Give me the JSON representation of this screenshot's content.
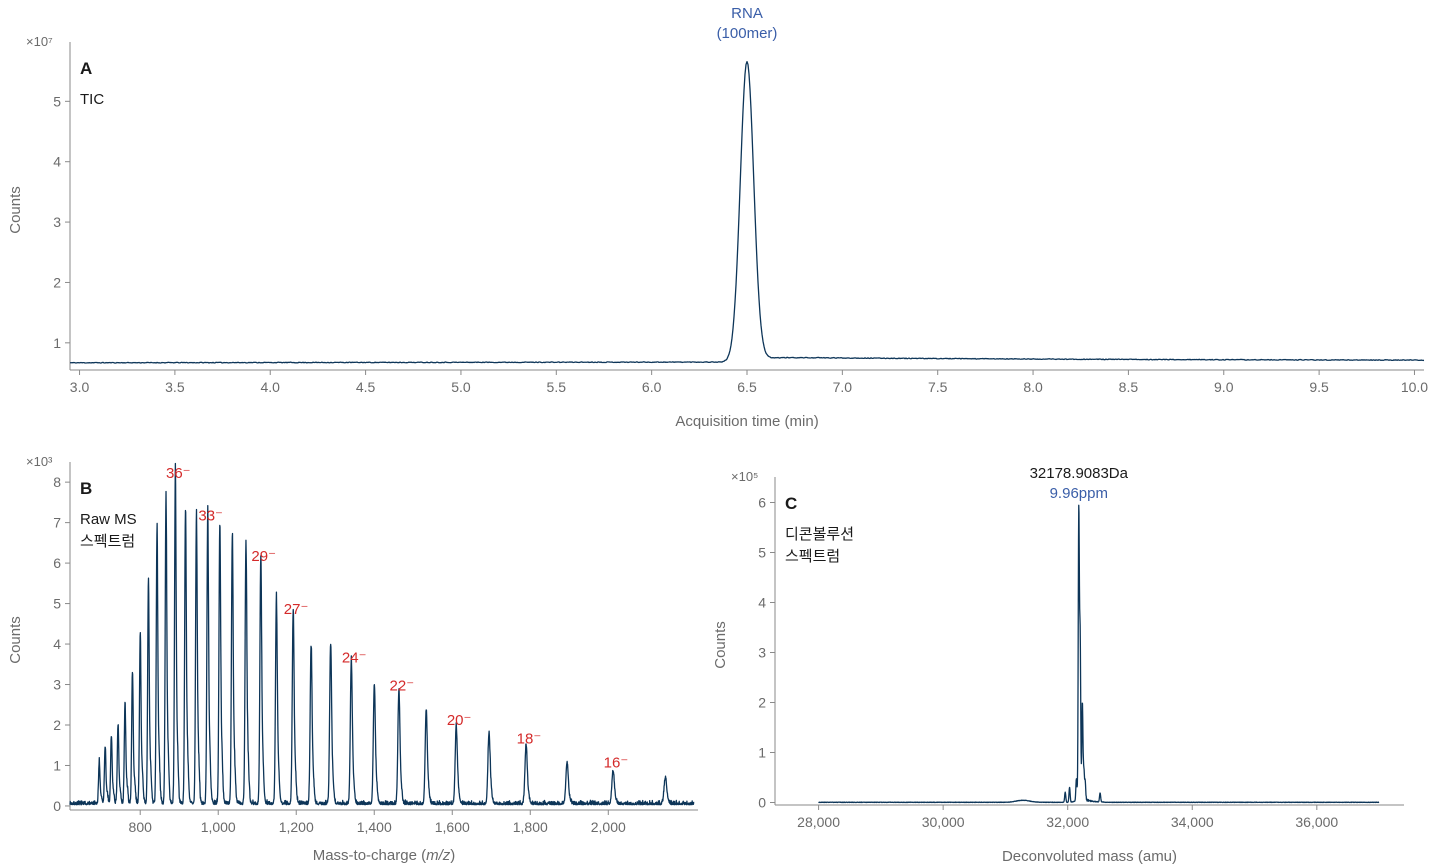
{
  "chart_data": [
    {
      "panel": "A",
      "type": "line",
      "labels": [
        "TIC"
      ],
      "xlabel": "Acquisition time (min)",
      "ylabel": "Counts",
      "y_exponent": "×10⁷",
      "xlim": [
        2.95,
        10.05
      ],
      "ylim": [
        0.55,
        5.85
      ],
      "xticks": [
        3.0,
        3.5,
        4.0,
        4.5,
        5.0,
        5.5,
        6.0,
        6.5,
        7.0,
        7.5,
        8.0,
        8.5,
        9.0,
        9.5,
        10.0
      ],
      "xtick_labels": [
        "3.0",
        "3.5",
        "4.0",
        "4.5",
        "5.0",
        "5.5",
        "6.0",
        "6.5",
        "7.0",
        "7.5",
        "8.0",
        "8.5",
        "9.0",
        "9.5",
        "10.0"
      ],
      "yticks": [
        1,
        2,
        3,
        4,
        5
      ],
      "ytick_labels": [
        "1",
        "2",
        "3",
        "4",
        "5"
      ],
      "baseline": 0.67,
      "peak": {
        "x": 6.5,
        "y": 5.65,
        "width": 0.035,
        "tail_level": 0.75
      },
      "annotations": [
        {
          "x": 6.5,
          "lines": [
            "RNA",
            "(100mer)"
          ],
          "color": "#3a5ea8"
        }
      ]
    },
    {
      "panel": "B",
      "type": "line",
      "labels": [
        "Raw MS",
        "스펙트럼"
      ],
      "xlabel_parts": [
        "Mass-to-charge (",
        "m/z",
        ")"
      ],
      "ylabel": "Counts",
      "y_exponent": "×10³",
      "xlim": [
        620,
        2230
      ],
      "ylim": [
        -0.1,
        8.3
      ],
      "xticks": [
        800,
        1000,
        1200,
        1400,
        1600,
        1800,
        2000
      ],
      "xtick_labels": [
        "800",
        "1,000",
        "1,200",
        "1,400",
        "1,600",
        "1,800",
        "2,000"
      ],
      "yticks": [
        0,
        1,
        2,
        3,
        4,
        5,
        6,
        7,
        8
      ],
      "ytick_labels": [
        "0",
        "1",
        "2",
        "3",
        "4",
        "5",
        "6",
        "7",
        "8"
      ],
      "peaks": [
        {
          "x": 2146,
          "y": 0.6
        },
        {
          "x": 2012,
          "y": 0.75
        },
        {
          "x": 1894,
          "y": 0.95
        },
        {
          "x": 1789,
          "y": 1.35
        },
        {
          "x": 1694,
          "y": 1.65
        },
        {
          "x": 1610,
          "y": 1.8
        },
        {
          "x": 1533,
          "y": 2.2
        },
        {
          "x": 1463,
          "y": 2.65
        },
        {
          "x": 1400,
          "y": 2.8
        },
        {
          "x": 1341,
          "y": 3.35
        },
        {
          "x": 1288,
          "y": 3.8
        },
        {
          "x": 1238,
          "y": 3.75
        },
        {
          "x": 1192,
          "y": 4.55
        },
        {
          "x": 1149,
          "y": 4.85
        },
        {
          "x": 1109,
          "y": 5.85
        },
        {
          "x": 1071,
          "y": 6.2
        },
        {
          "x": 1036,
          "y": 6.4
        },
        {
          "x": 1004,
          "y": 6.7
        },
        {
          "x": 973,
          "y": 6.85
        },
        {
          "x": 944,
          "y": 6.9
        },
        {
          "x": 916,
          "y": 7.1
        },
        {
          "x": 890,
          "y": 7.9
        },
        {
          "x": 866,
          "y": 7.35
        },
        {
          "x": 843,
          "y": 6.6
        },
        {
          "x": 821,
          "y": 5.3
        },
        {
          "x": 800,
          "y": 4.1
        },
        {
          "x": 780,
          "y": 3.2
        },
        {
          "x": 761,
          "y": 2.4
        },
        {
          "x": 743,
          "y": 1.9
        },
        {
          "x": 726,
          "y": 1.65
        },
        {
          "x": 710,
          "y": 1.4
        },
        {
          "x": 695,
          "y": 1.0
        }
      ],
      "charge_labels": [
        {
          "x": 890,
          "y": 7.9,
          "text": "36⁻"
        },
        {
          "x": 973,
          "y": 6.85,
          "text": "33⁻"
        },
        {
          "x": 1109,
          "y": 5.85,
          "text": "29⁻"
        },
        {
          "x": 1192,
          "y": 4.55,
          "text": "27⁻"
        },
        {
          "x": 1341,
          "y": 3.35,
          "text": "24⁻"
        },
        {
          "x": 1463,
          "y": 2.65,
          "text": "22⁻"
        },
        {
          "x": 1610,
          "y": 1.8,
          "text": "20⁻"
        },
        {
          "x": 1789,
          "y": 1.35,
          "text": "18⁻"
        },
        {
          "x": 2012,
          "y": 0.75,
          "text": "16⁻"
        }
      ]
    },
    {
      "panel": "C",
      "type": "line",
      "labels": [
        "디콘볼루션",
        "스펙트럼"
      ],
      "xlabel": "Deconvoluted mass (amu)",
      "ylabel": "Counts",
      "y_exponent": "×10⁵",
      "xlim": [
        27300,
        37400
      ],
      "ylim": [
        -0.05,
        6.35
      ],
      "xticks": [
        28000,
        30000,
        32000,
        34000,
        36000
      ],
      "xtick_labels": [
        "28,000",
        "30,000",
        "32,000",
        "34,000",
        "36,000"
      ],
      "yticks": [
        0,
        1,
        2,
        3,
        4,
        5,
        6
      ],
      "ytick_labels": [
        "0",
        "1",
        "2",
        "3",
        "4",
        "5",
        "6"
      ],
      "data_start": 28000,
      "data_end": 37000,
      "peaks": [
        {
          "x": 32178,
          "y": 5.78
        },
        {
          "x": 32200,
          "y": 3.2
        },
        {
          "x": 32235,
          "y": 1.95
        },
        {
          "x": 32258,
          "y": 0.6
        },
        {
          "x": 32280,
          "y": 0.35
        },
        {
          "x": 32140,
          "y": 0.45
        },
        {
          "x": 32030,
          "y": 0.3
        },
        {
          "x": 31960,
          "y": 0.2
        },
        {
          "x": 32520,
          "y": 0.18
        },
        {
          "x": 31280,
          "y": 0.04
        }
      ],
      "annotations": [
        {
          "x": 32178,
          "lines": [
            "32178.9083Da"
          ],
          "color": "#1a1a1a"
        },
        {
          "x": 32178,
          "lines": [
            "9.96ppm"
          ],
          "color": "#3a5ea8"
        }
      ]
    }
  ]
}
